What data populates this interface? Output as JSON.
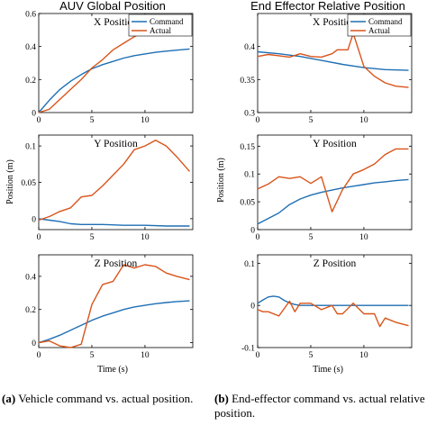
{
  "figure": {
    "left_title": "AUV Global Position",
    "right_title": "End Effector Relative Position",
    "shared_ylabel": "Position (m)",
    "shared_xlabel": "Time (s)",
    "caption_left_tag": "(a)",
    "caption_left_text": "Vehicle command vs. actual position.",
    "caption_right_tag": "(b)",
    "caption_right_text": "End-effector command vs. actual relative position.",
    "colors": {
      "command": "#1f6fb4",
      "actual": "#d9541a"
    }
  },
  "chart_data": [
    {
      "id": "auv-x",
      "type": "line",
      "title": "X Position",
      "xlabel": "",
      "ylabel": "",
      "xlim": [
        0,
        14.5
      ],
      "ylim": [
        0,
        0.6
      ],
      "xticks": [
        0,
        5,
        10
      ],
      "yticks": [
        0,
        0.2,
        0.4,
        0.6
      ],
      "ytick_labels": [
        "0",
        "0.2",
        "0.4",
        "0.6"
      ],
      "legend": "top-right",
      "series": [
        {
          "name": "Command",
          "x": [
            0,
            1,
            2,
            3,
            4,
            5,
            6,
            7,
            8,
            9,
            10,
            11,
            12,
            13,
            14.2
          ],
          "y": [
            0,
            0.075,
            0.14,
            0.19,
            0.23,
            0.265,
            0.29,
            0.31,
            0.33,
            0.345,
            0.355,
            0.365,
            0.372,
            0.378,
            0.385
          ]
        },
        {
          "name": "Actual",
          "x": [
            0,
            1,
            2,
            3,
            4,
            5,
            6,
            7,
            8,
            9,
            10,
            11,
            12,
            13,
            14.2
          ],
          "y": [
            0,
            0.02,
            0.08,
            0.14,
            0.2,
            0.27,
            0.32,
            0.38,
            0.42,
            0.46,
            0.49,
            0.51,
            0.51,
            0.51,
            0.5
          ]
        }
      ]
    },
    {
      "id": "ee-x",
      "type": "line",
      "title": "X Position",
      "xlabel": "",
      "ylabel": "",
      "xlim": [
        0,
        14.5
      ],
      "ylim": [
        0.3,
        0.45
      ],
      "xticks": [
        0,
        5,
        10
      ],
      "yticks": [
        0.3,
        0.35,
        0.4
      ],
      "ytick_labels": [
        "0.3",
        "0.35",
        "0.4"
      ],
      "legend": "top-right",
      "series": [
        {
          "name": "Command",
          "x": [
            0,
            2,
            4,
            6,
            8,
            10,
            12,
            14.2
          ],
          "y": [
            0.392,
            0.389,
            0.385,
            0.379,
            0.373,
            0.368,
            0.365,
            0.364
          ]
        },
        {
          "name": "Actual",
          "x": [
            0,
            1,
            2,
            3,
            4,
            5,
            6,
            7,
            7.5,
            8.5,
            9,
            9.5,
            10,
            11,
            12,
            13,
            14.2
          ],
          "y": [
            0.385,
            0.388,
            0.386,
            0.384,
            0.389,
            0.385,
            0.384,
            0.389,
            0.395,
            0.395,
            0.42,
            0.395,
            0.37,
            0.355,
            0.345,
            0.34,
            0.338
          ]
        }
      ]
    },
    {
      "id": "auv-y",
      "type": "line",
      "title": "Y Position",
      "xlabel": "",
      "ylabel": "Position (m)",
      "xlim": [
        0,
        14.5
      ],
      "ylim": [
        -0.015,
        0.115
      ],
      "xticks": [
        0,
        5,
        10
      ],
      "yticks": [
        0,
        0.05,
        0.1
      ],
      "ytick_labels": [
        "0",
        "0.05",
        "0.1"
      ],
      "legend": "none",
      "series": [
        {
          "name": "Command",
          "x": [
            0,
            1,
            2,
            3,
            4,
            5,
            6,
            8,
            10,
            12,
            14.2
          ],
          "y": [
            0,
            -0.002,
            -0.004,
            -0.007,
            -0.008,
            -0.008,
            -0.008,
            -0.009,
            -0.009,
            -0.01,
            -0.01
          ]
        },
        {
          "name": "Actual",
          "x": [
            0,
            1,
            2,
            3,
            4,
            5,
            6,
            7,
            8,
            9,
            10,
            11,
            12,
            13,
            14.2
          ],
          "y": [
            -0.002,
            0.003,
            0.01,
            0.015,
            0.03,
            0.032,
            0.045,
            0.06,
            0.075,
            0.095,
            0.1,
            0.108,
            0.1,
            0.085,
            0.065
          ]
        }
      ]
    },
    {
      "id": "ee-y",
      "type": "line",
      "title": "Y Position",
      "xlabel": "",
      "ylabel": "Position (m)",
      "xlim": [
        0,
        14.5
      ],
      "ylim": [
        0,
        0.17
      ],
      "xticks": [
        0,
        5,
        10
      ],
      "yticks": [
        0,
        0.05,
        0.1,
        0.15
      ],
      "ytick_labels": [
        "0",
        "0.05",
        "0.1",
        "0.15"
      ],
      "legend": "none",
      "series": [
        {
          "name": "Command",
          "x": [
            0,
            1,
            2,
            3,
            4,
            5,
            6,
            7,
            8,
            9,
            10,
            11,
            12,
            13,
            14.2
          ],
          "y": [
            0.01,
            0.02,
            0.03,
            0.045,
            0.055,
            0.062,
            0.067,
            0.071,
            0.075,
            0.078,
            0.081,
            0.084,
            0.086,
            0.088,
            0.09
          ]
        },
        {
          "name": "Actual",
          "x": [
            0,
            1,
            2,
            3,
            4,
            5,
            6,
            7,
            8,
            9,
            10,
            11,
            12,
            13,
            14.2
          ],
          "y": [
            0.073,
            0.082,
            0.095,
            0.092,
            0.095,
            0.083,
            0.095,
            0.032,
            0.072,
            0.1,
            0.108,
            0.118,
            0.135,
            0.145,
            0.145
          ]
        }
      ]
    },
    {
      "id": "auv-z",
      "type": "line",
      "title": "Z Position",
      "xlabel": "Time (s)",
      "ylabel": "",
      "xlim": [
        0,
        14.5
      ],
      "ylim": [
        -0.03,
        0.53
      ],
      "xticks": [
        0,
        5,
        10
      ],
      "yticks": [
        0,
        0.2,
        0.4
      ],
      "ytick_labels": [
        "0",
        "0.2",
        "0.4"
      ],
      "legend": "none",
      "series": [
        {
          "name": "Command",
          "x": [
            0,
            1,
            2,
            3,
            4,
            5,
            6,
            7,
            8,
            9,
            10,
            11,
            12,
            13,
            14.2
          ],
          "y": [
            0,
            0.02,
            0.045,
            0.075,
            0.105,
            0.135,
            0.16,
            0.18,
            0.2,
            0.215,
            0.225,
            0.235,
            0.242,
            0.248,
            0.252
          ]
        },
        {
          "name": "Actual",
          "x": [
            0,
            1,
            2,
            3,
            4,
            5,
            6,
            7,
            8,
            9,
            10,
            11,
            12,
            13,
            14.2
          ],
          "y": [
            0,
            0.01,
            -0.02,
            -0.03,
            -0.01,
            0.23,
            0.35,
            0.37,
            0.47,
            0.45,
            0.47,
            0.46,
            0.42,
            0.4,
            0.38
          ]
        }
      ]
    },
    {
      "id": "ee-z",
      "type": "line",
      "title": "Z Position",
      "xlabel": "Time (s)",
      "ylabel": "",
      "xlim": [
        0,
        14.5
      ],
      "ylim": [
        -0.1,
        0.12
      ],
      "xticks": [
        0,
        5,
        10
      ],
      "yticks": [
        -0.1,
        0,
        0.1
      ],
      "ytick_labels": [
        "-0.1",
        "0",
        "0.1"
      ],
      "legend": "none",
      "series": [
        {
          "name": "Command",
          "x": [
            0,
            0.5,
            1,
            1.5,
            2,
            2.5,
            3,
            3.5,
            4,
            5,
            6,
            8,
            10,
            12,
            14.2
          ],
          "y": [
            0.005,
            0.013,
            0.02,
            0.022,
            0.02,
            0.012,
            0.006,
            0.002,
            0,
            0,
            0,
            0,
            0,
            0,
            0
          ]
        },
        {
          "name": "Actual",
          "x": [
            0,
            0.5,
            1,
            2,
            3,
            3.5,
            4,
            5,
            6,
            7,
            7.5,
            8,
            9,
            10,
            11,
            11.5,
            12,
            13,
            14.2
          ],
          "y": [
            -0.01,
            -0.015,
            -0.015,
            -0.025,
            0.01,
            -0.015,
            0.005,
            0.005,
            -0.01,
            0,
            -0.02,
            -0.02,
            0.005,
            -0.02,
            -0.02,
            -0.05,
            -0.03,
            -0.04,
            -0.048
          ]
        }
      ]
    }
  ]
}
